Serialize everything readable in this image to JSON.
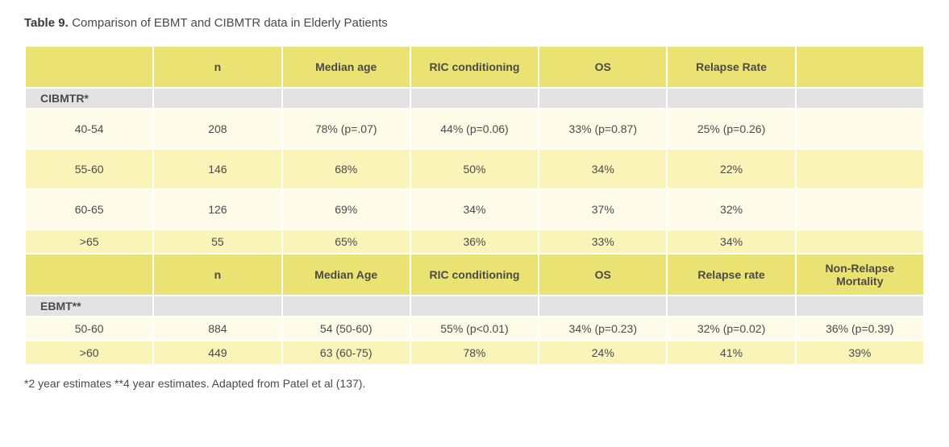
{
  "title_label": "Table 9.",
  "title_text": "Comparison of EBMT and CIBMTR data in Elderly Patients",
  "colors": {
    "header_bg": "#ebe274",
    "section_bg": "#e3e3e3",
    "pale_bg": "#fefce9",
    "cream_bg": "#faf4b8",
    "border": "#ffffff",
    "text": "#4a4a4a"
  },
  "headers1": [
    "",
    "n",
    "Median age",
    "RIC conditioning",
    "OS",
    "Relapse Rate",
    ""
  ],
  "section1": "CIBMTR*",
  "cibmtr_rows": [
    {
      "h": "h-tall",
      "shade": "pale",
      "c": [
        "40-54",
        "208",
        "78% (p=.07)",
        "44% (p=0.06)",
        "33% (p=0.87)",
        "25% (p=0.26)",
        ""
      ]
    },
    {
      "h": "h-tall",
      "shade": "cream",
      "c": [
        "55-60",
        "146",
        "68%",
        "50%",
        "34%",
        "22%",
        ""
      ]
    },
    {
      "h": "h-tall",
      "shade": "pale",
      "c": [
        "60-65",
        "126",
        "69%",
        "34%",
        "37%",
        "32%",
        ""
      ]
    },
    {
      "h": "h-short",
      "shade": "cream",
      "c": [
        ">65",
        "55",
        "65%",
        "36%",
        "33%",
        "34%",
        ""
      ]
    }
  ],
  "headers2": [
    "",
    "n",
    "Median Age",
    "RIC conditioning",
    "OS",
    "Relapse rate",
    "Non-Relapse Mortality"
  ],
  "section2": "EBMT**",
  "ebmt_rows": [
    {
      "h": "h-short",
      "shade": "pale",
      "c": [
        "50-60",
        "884",
        "54 (50-60)",
        "55% (p<0.01)",
        "34% (p=0.23)",
        "32% (p=0.02)",
        "36% (p=0.39)"
      ]
    },
    {
      "h": "h-short",
      "shade": "cream",
      "c": [
        ">60",
        "449",
        "63 (60-75)",
        "78%",
        "24%",
        "41%",
        "39%"
      ]
    }
  ],
  "footnote": "*2 year estimates **4 year estimates. Adapted from Patel et al (137)."
}
